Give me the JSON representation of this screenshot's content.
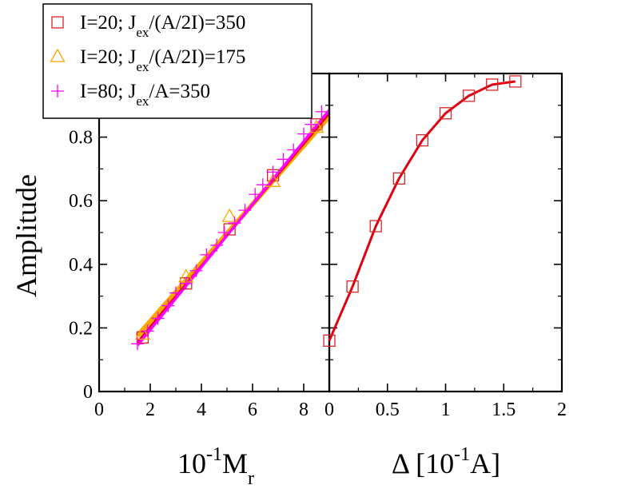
{
  "chart_data": [
    {
      "type": "scatter",
      "title": "",
      "xlabel": {
        "base": "10",
        "sup": "-1",
        "main": "M",
        "sub": "r"
      },
      "ylabel": "Amplitude",
      "xlim": [
        0,
        9
      ],
      "ylim": [
        0,
        1
      ],
      "xticks": [
        "0",
        "2",
        "4",
        "6",
        "8"
      ],
      "yticks": [
        "0",
        "0.2",
        "0.4",
        "0.6",
        "0.8"
      ],
      "grid": false,
      "legend_position": "top-left",
      "series": [
        {
          "marker": "square",
          "color": "#d62728",
          "legend": {
            "pre": "I=20; J",
            "sub": "ex",
            "post": "/(A/2I)=350"
          },
          "x": [
            1.7,
            3.4,
            5.1,
            6.8,
            8.5
          ],
          "y": [
            0.17,
            0.34,
            0.51,
            0.68,
            0.84
          ],
          "fit": {
            "x": [
              1.5,
              9.0
            ],
            "y": [
              0.155,
              0.875
            ],
            "color": "#e0000f"
          }
        },
        {
          "marker": "triangle",
          "color": "#ffa500",
          "legend": {
            "pre": "I=20; J",
            "sub": "ex",
            "post": "/(A/2I)=175"
          },
          "x": [
            1.7,
            3.4,
            5.1,
            6.8,
            8.5
          ],
          "y": [
            0.18,
            0.36,
            0.55,
            0.66,
            0.83
          ],
          "fit": {
            "x": [
              1.5,
              9.0
            ],
            "y": [
              0.175,
              0.865
            ],
            "color": "#ffa500"
          }
        },
        {
          "marker": "plus",
          "color": "#ff00ff",
          "legend": {
            "pre": "I=80; J",
            "sub": "ex",
            "post": "/A=350"
          },
          "x": [
            1.5,
            1.9,
            2.3,
            2.7,
            3.0,
            3.4,
            3.8,
            4.2,
            4.6,
            4.9,
            5.3,
            5.7,
            6.1,
            6.4,
            6.8,
            7.2,
            7.6,
            8.0,
            8.3,
            8.7
          ],
          "y": [
            0.15,
            0.19,
            0.23,
            0.27,
            0.31,
            0.34,
            0.38,
            0.43,
            0.46,
            0.5,
            0.53,
            0.57,
            0.62,
            0.65,
            0.69,
            0.73,
            0.76,
            0.81,
            0.84,
            0.88
          ],
          "fit": {
            "x": [
              1.5,
              9.0
            ],
            "y": [
              0.145,
              0.885
            ],
            "color": "#ff00ff"
          }
        }
      ]
    },
    {
      "type": "line",
      "title": "",
      "xlabel": {
        "main": "Δ [10",
        "sup": "-1",
        "post": "A]"
      },
      "ylabel": "",
      "xlim": [
        0,
        2
      ],
      "ylim": [
        0,
        1
      ],
      "xticks": [
        "0",
        "0.5",
        "1",
        "1.5",
        "2"
      ],
      "grid": false,
      "series": [
        {
          "marker": "square",
          "color": "#d62728",
          "line_color": "#e0000f",
          "x": [
            0,
            0.2,
            0.4,
            0.6,
            0.8,
            1.0,
            1.2,
            1.4,
            1.6
          ],
          "y": [
            0.16,
            0.33,
            0.52,
            0.67,
            0.79,
            0.875,
            0.93,
            0.965,
            0.975
          ]
        }
      ]
    }
  ]
}
